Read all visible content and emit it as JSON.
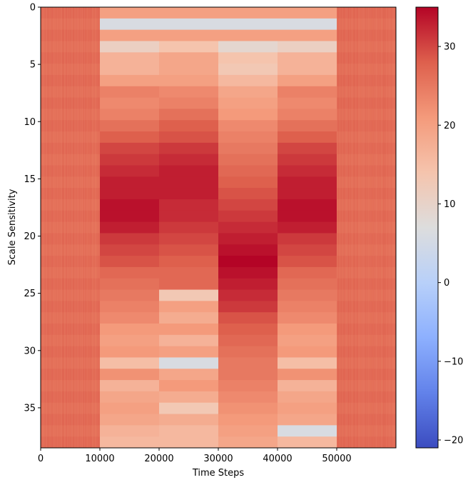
{
  "chart_data": {
    "type": "heatmap",
    "title": "",
    "xlabel": "Time Steps",
    "ylabel": "Scale Sensitivity",
    "colormap": "coolwarm",
    "x_range": [
      0,
      60000
    ],
    "y_range": [
      0,
      38.5
    ],
    "y_inverted": true,
    "x_ticks": [
      0,
      10000,
      20000,
      30000,
      40000,
      50000
    ],
    "x_tick_labels": [
      "0",
      "10000",
      "20000",
      "30000",
      "40000",
      "50000"
    ],
    "y_ticks": [
      0,
      5,
      10,
      15,
      20,
      25,
      30,
      35
    ],
    "y_tick_labels": [
      "0",
      "5",
      "10",
      "15",
      "20",
      "25",
      "30",
      "35"
    ],
    "colorbar": {
      "min": -21,
      "max": 35,
      "ticks": [
        -20,
        -10,
        0,
        10,
        20,
        30
      ],
      "tick_labels": [
        "−20",
        "−10",
        "0",
        "10",
        "20",
        "30"
      ]
    },
    "segments": [
      {
        "x_start": 0,
        "x_end": 10000,
        "pattern": "noise",
        "values": [
          27,
          26,
          27,
          26,
          27,
          26,
          27,
          26,
          27,
          26,
          27,
          26,
          27,
          26,
          27,
          26,
          27,
          26,
          27,
          26,
          27,
          26,
          27,
          26,
          27,
          26,
          27,
          26,
          27,
          26,
          27,
          26,
          27,
          26,
          27,
          26,
          27,
          26,
          27
        ]
      },
      {
        "x_start": 10000,
        "x_end": 20000,
        "pattern": "rows",
        "values": [
          20,
          6,
          20,
          11,
          17,
          17,
          20,
          24,
          23,
          24,
          26,
          28,
          30,
          31,
          32,
          33,
          33,
          34,
          34,
          33,
          31,
          30,
          29,
          27,
          26,
          25,
          24,
          23,
          21,
          20,
          21,
          15,
          22,
          17,
          19,
          20,
          19,
          17,
          16
        ]
      },
      {
        "x_start": 20000,
        "x_end": 30000,
        "pattern": "rows",
        "values": [
          20,
          6,
          20,
          14,
          19,
          19,
          20,
          23,
          24,
          26,
          28,
          29,
          31,
          32,
          33,
          33,
          33,
          32,
          32,
          31,
          30,
          29,
          28,
          27,
          27,
          13,
          20,
          18,
          21,
          17,
          20,
          6,
          19,
          21,
          18,
          13,
          18,
          16,
          16
        ]
      },
      {
        "x_start": 30000,
        "x_end": 40000,
        "pattern": "rows",
        "values": [
          20,
          6,
          20,
          9,
          14,
          13,
          16,
          19,
          20,
          21,
          23,
          24,
          25,
          26,
          27,
          28,
          29,
          30,
          31,
          32,
          33,
          34,
          35,
          34,
          33,
          32,
          31,
          29,
          28,
          27,
          26,
          25,
          25,
          24,
          23,
          22,
          21,
          20,
          19
        ]
      },
      {
        "x_start": 40000,
        "x_end": 50000,
        "pattern": "rows",
        "values": [
          20,
          6,
          20,
          11,
          17,
          17,
          20,
          24,
          23,
          24,
          26,
          28,
          30,
          31,
          32,
          33,
          33,
          34,
          34,
          33,
          31,
          30,
          29,
          27,
          26,
          25,
          24,
          23,
          21,
          20,
          21,
          15,
          22,
          17,
          19,
          20,
          19,
          6,
          16
        ]
      },
      {
        "x_start": 50000,
        "x_end": 60000,
        "pattern": "noise",
        "values": [
          27,
          26,
          27,
          26,
          27,
          26,
          27,
          26,
          27,
          26,
          27,
          26,
          27,
          26,
          27,
          26,
          27,
          26,
          27,
          26,
          27,
          26,
          27,
          26,
          27,
          26,
          27,
          26,
          27,
          26,
          27,
          26,
          27,
          26,
          27,
          26,
          27,
          26,
          27
        ]
      }
    ]
  }
}
